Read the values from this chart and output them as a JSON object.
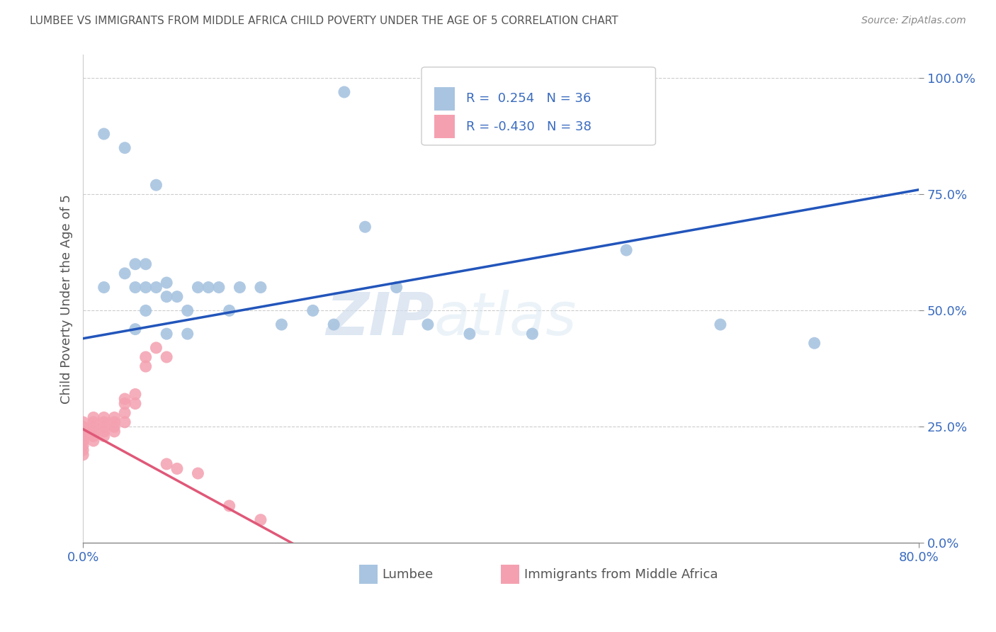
{
  "title": "LUMBEE VS IMMIGRANTS FROM MIDDLE AFRICA CHILD POVERTY UNDER THE AGE OF 5 CORRELATION CHART",
  "source": "Source: ZipAtlas.com",
  "xlabel_lumbee": "Lumbee",
  "xlabel_immigrants": "Immigrants from Middle Africa",
  "ylabel": "Child Poverty Under the Age of 5",
  "lumbee_R": 0.254,
  "lumbee_N": 36,
  "immigrants_R": -0.43,
  "immigrants_N": 38,
  "xmin": 0.0,
  "xmax": 0.8,
  "ymin": 0.0,
  "ymax": 1.05,
  "yticks": [
    0.0,
    0.25,
    0.5,
    0.75,
    1.0
  ],
  "ytick_labels": [
    "0.0%",
    "25.0%",
    "50.0%",
    "75.0%",
    "100.0%"
  ],
  "xticks": [
    0.0,
    0.8
  ],
  "xtick_labels": [
    "0.0%",
    "80.0%"
  ],
  "lumbee_color": "#a8c4e0",
  "immigrants_color": "#f4a0b0",
  "lumbee_line_color": "#2255bb",
  "immigrants_line_color": "#e05878",
  "background_color": "#ffffff",
  "watermark": "ZIPatlas",
  "lumbee_line_x0": 0.0,
  "lumbee_line_y0": 0.44,
  "lumbee_line_x1": 0.8,
  "lumbee_line_y1": 0.76,
  "immigrants_line_x0": 0.0,
  "immigrants_line_y0": 0.245,
  "immigrants_line_x1": 0.2,
  "immigrants_line_y1": 0.0,
  "lumbee_x": [
    0.02,
    0.04,
    0.07,
    0.02,
    0.04,
    0.05,
    0.05,
    0.06,
    0.06,
    0.07,
    0.08,
    0.08,
    0.09,
    0.1,
    0.11,
    0.12,
    0.13,
    0.14,
    0.15,
    0.17,
    0.22,
    0.24,
    0.25,
    0.05,
    0.06,
    0.08,
    0.1,
    0.3,
    0.37,
    0.43,
    0.52,
    0.61,
    0.7,
    0.27,
    0.33,
    0.19
  ],
  "lumbee_y": [
    0.88,
    0.85,
    0.77,
    0.55,
    0.58,
    0.6,
    0.55,
    0.6,
    0.55,
    0.55,
    0.56,
    0.53,
    0.53,
    0.5,
    0.55,
    0.55,
    0.55,
    0.5,
    0.55,
    0.55,
    0.5,
    0.47,
    0.97,
    0.46,
    0.5,
    0.45,
    0.45,
    0.55,
    0.45,
    0.45,
    0.63,
    0.47,
    0.43,
    0.68,
    0.47,
    0.47
  ],
  "immigrants_x": [
    0.0,
    0.0,
    0.0,
    0.0,
    0.0,
    0.0,
    0.0,
    0.0,
    0.01,
    0.01,
    0.01,
    0.01,
    0.01,
    0.01,
    0.02,
    0.02,
    0.02,
    0.02,
    0.02,
    0.03,
    0.03,
    0.03,
    0.03,
    0.04,
    0.04,
    0.04,
    0.04,
    0.05,
    0.05,
    0.06,
    0.06,
    0.07,
    0.08,
    0.08,
    0.09,
    0.11,
    0.14,
    0.17
  ],
  "immigrants_y": [
    0.26,
    0.25,
    0.24,
    0.23,
    0.22,
    0.21,
    0.2,
    0.19,
    0.27,
    0.26,
    0.25,
    0.24,
    0.23,
    0.22,
    0.27,
    0.26,
    0.25,
    0.24,
    0.23,
    0.27,
    0.26,
    0.25,
    0.24,
    0.31,
    0.3,
    0.28,
    0.26,
    0.32,
    0.3,
    0.4,
    0.38,
    0.42,
    0.4,
    0.17,
    0.16,
    0.15,
    0.08,
    0.05
  ]
}
